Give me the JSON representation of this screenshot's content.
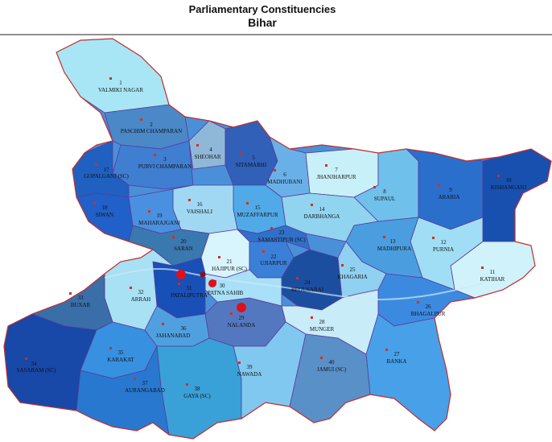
{
  "header": {
    "title": "Parliamentary Constituencies",
    "subtitle": "Bihar"
  },
  "constituencies": [
    {
      "number": "1",
      "name": "VALMIKI NAGAR"
    },
    {
      "number": "2",
      "name": "PASCHIM CHAMPARAN"
    },
    {
      "number": "3",
      "name": "PURVI CHAMPARAN"
    },
    {
      "number": "4",
      "name": "SHEOHAR"
    },
    {
      "number": "5",
      "name": "SITAMARHI"
    },
    {
      "number": "6",
      "name": "MADHUBANI"
    },
    {
      "number": "7",
      "name": "JHANJHARPUR"
    },
    {
      "number": "8",
      "name": "SUPAUL"
    },
    {
      "number": "9",
      "name": "ARARIA"
    },
    {
      "number": "10",
      "name": "KISHANGANJ"
    },
    {
      "number": "11",
      "name": "KATIHAR"
    },
    {
      "number": "12",
      "name": "PURNIA"
    },
    {
      "number": "13",
      "name": "MADHIPURA"
    },
    {
      "number": "14",
      "name": "DARBHANGA"
    },
    {
      "number": "15",
      "name": "MUZAFFARPUR"
    },
    {
      "number": "16",
      "name": "VAISHALI"
    },
    {
      "number": "17",
      "name": "GOPALGANJ (SC)"
    },
    {
      "number": "18",
      "name": "SIWAN"
    },
    {
      "number": "19",
      "name": "MAHARAJGANJ"
    },
    {
      "number": "20",
      "name": "SARAN"
    },
    {
      "number": "21",
      "name": "HAJIPUR (SC)"
    },
    {
      "number": "22",
      "name": "UJIARPUR"
    },
    {
      "number": "23",
      "name": "SAMASTIPUR (SC)"
    },
    {
      "number": "24",
      "name": "BEGUSARAI"
    },
    {
      "number": "25",
      "name": "KHAGARIA"
    },
    {
      "number": "26",
      "name": "BHAGALPUR"
    },
    {
      "number": "27",
      "name": "BANKA"
    },
    {
      "number": "28",
      "name": "MUNGER"
    },
    {
      "number": "29",
      "name": "NALANDA"
    },
    {
      "number": "30",
      "name": "PATNA SAHIB"
    },
    {
      "number": "31",
      "name": "PATALIPUTRA"
    },
    {
      "number": "32",
      "name": "ARRAH"
    },
    {
      "number": "33",
      "name": "BUXAR"
    },
    {
      "number": "34",
      "name": "SASARAM (SC)"
    },
    {
      "number": "35",
      "name": "KARAKAT"
    },
    {
      "number": "36",
      "name": "JAHANABAD"
    },
    {
      "number": "37",
      "name": "AURANGABAD"
    },
    {
      "number": "38",
      "name": "GAYA (SC)"
    },
    {
      "number": "39",
      "name": "NAWADA"
    },
    {
      "number": "40",
      "name": "JAMUI (SC)"
    }
  ]
}
